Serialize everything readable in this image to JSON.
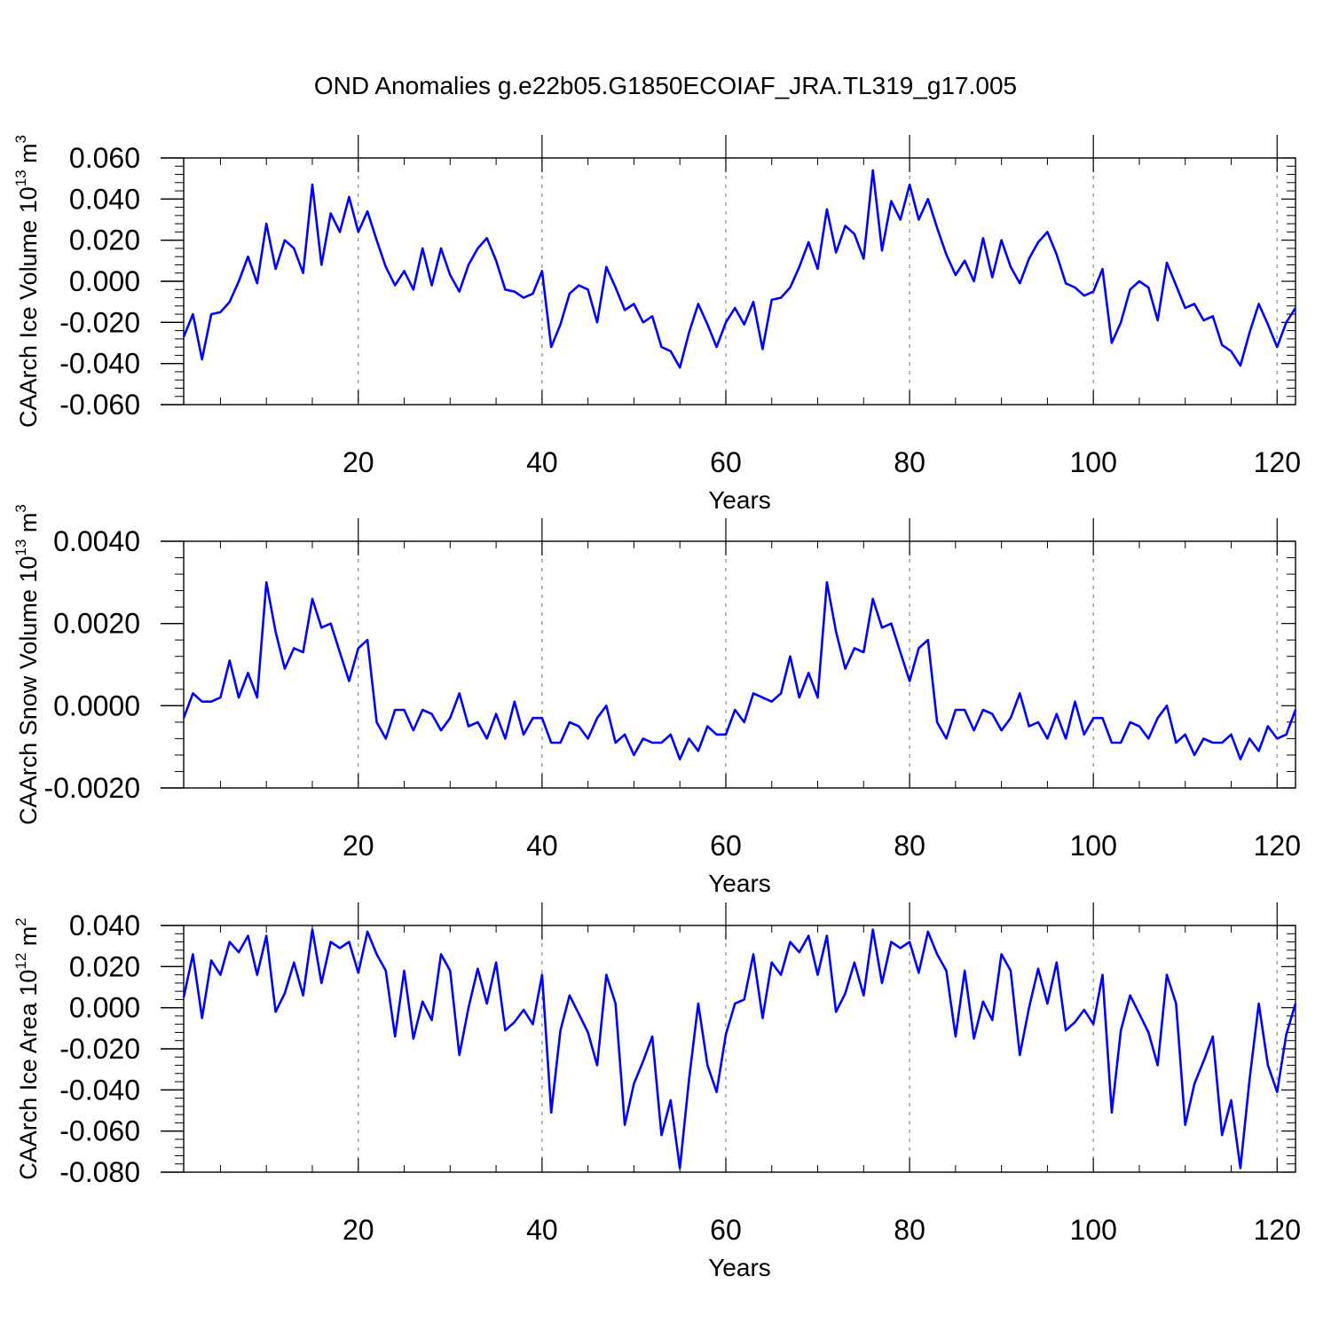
{
  "title": "OND Anomalies g.e22b05.G1850ECOIAF_JRA.TL319_g17.005",
  "colors": {
    "line": "#0000ff",
    "frame": "#000000",
    "grid": "#888888"
  },
  "chart_data": [
    {
      "type": "line",
      "name": "ice-volume",
      "ylabel_main": "CAArch Ice Volume 10",
      "ylabel_exp": "13",
      "ylabel_unit": " m",
      "ylabel_unit_exp": "3",
      "xlabel": "Years",
      "xlim": [
        1,
        122
      ],
      "ylim": [
        -0.06,
        0.06
      ],
      "xticks": [
        20,
        40,
        60,
        80,
        100,
        120
      ],
      "xtick_labels": [
        "20",
        "40",
        "60",
        "80",
        "100",
        "120"
      ],
      "yticks": [
        -0.06,
        -0.04,
        -0.02,
        0.0,
        0.02,
        0.04,
        0.06
      ],
      "ytick_labels": [
        "-0.060",
        "-0.040",
        "-0.020",
        "0.000",
        "0.020",
        "0.040",
        "0.060"
      ],
      "grid_x": [
        20,
        40,
        60,
        80,
        100,
        120
      ],
      "series": [
        {
          "name": "CAArch Ice Volume",
          "values": [
            -0.027,
            -0.016,
            -0.038,
            -0.016,
            -0.015,
            -0.01,
            0.0,
            0.012,
            -0.001,
            0.028,
            0.006,
            0.02,
            0.016,
            0.004,
            0.047,
            0.008,
            0.033,
            0.024,
            0.041,
            0.024,
            0.034,
            0.02,
            0.007,
            -0.002,
            0.005,
            -0.004,
            0.016,
            -0.002,
            0.016,
            0.003,
            -0.005,
            0.008,
            0.016,
            0.021,
            0.01,
            -0.004,
            -0.005,
            -0.008,
            -0.006,
            0.005,
            -0.032,
            -0.021,
            -0.006,
            -0.002,
            -0.004,
            -0.02,
            0.007,
            -0.003,
            -0.014,
            -0.011,
            -0.02,
            -0.017,
            -0.032,
            -0.034,
            -0.042,
            -0.025,
            -0.011,
            -0.021,
            -0.032,
            -0.02,
            -0.013,
            -0.021,
            -0.01,
            -0.033,
            -0.009,
            -0.008,
            -0.003,
            0.007,
            0.019,
            0.006,
            0.035,
            0.014,
            0.027,
            0.023,
            0.011,
            0.054,
            0.015,
            0.039,
            0.03,
            0.047,
            0.03,
            0.04,
            0.026,
            0.013,
            0.003,
            0.01,
            0.0,
            0.021,
            0.002,
            0.02,
            0.007,
            -0.001,
            0.011,
            0.019,
            0.024,
            0.013,
            -0.001,
            -0.003,
            -0.007,
            -0.005,
            0.006,
            -0.03,
            -0.02,
            -0.004,
            0.0,
            -0.003,
            -0.019,
            0.009,
            -0.002,
            -0.013,
            -0.011,
            -0.019,
            -0.017,
            -0.031,
            -0.034,
            -0.041,
            -0.025,
            -0.011,
            -0.021,
            -0.032,
            -0.02,
            -0.013
          ]
        }
      ]
    },
    {
      "type": "line",
      "name": "snow-volume",
      "ylabel_main": "CAArch Snow Volume 10",
      "ylabel_exp": "13",
      "ylabel_unit": " m",
      "ylabel_unit_exp": "3",
      "xlabel": "Years",
      "xlim": [
        1,
        122
      ],
      "ylim": [
        -0.002,
        0.004
      ],
      "xticks": [
        20,
        40,
        60,
        80,
        100,
        120
      ],
      "xtick_labels": [
        "20",
        "40",
        "60",
        "80",
        "100",
        "120"
      ],
      "yticks": [
        -0.002,
        0.0,
        0.002,
        0.004
      ],
      "ytick_labels": [
        "-0.0020",
        "0.0000",
        "0.0020",
        "0.0040"
      ],
      "grid_x": [
        20,
        40,
        60,
        80,
        100,
        120
      ],
      "series": [
        {
          "name": "CAArch Snow Volume",
          "values": [
            -0.0003,
            0.0003,
            0.0001,
            0.0001,
            0.0002,
            0.0011,
            0.0002,
            0.0008,
            0.0002,
            0.003,
            0.0018,
            0.0009,
            0.0014,
            0.0013,
            0.0026,
            0.0019,
            0.002,
            0.0013,
            0.0006,
            0.0014,
            0.0016,
            -0.0004,
            -0.0008,
            -0.0001,
            -0.0001,
            -0.0006,
            -0.0001,
            -0.0002,
            -0.0006,
            -0.0003,
            0.0003,
            -0.0005,
            -0.0004,
            -0.0008,
            -0.0002,
            -0.0008,
            0.0001,
            -0.0007,
            -0.0003,
            -0.0003,
            -0.0009,
            -0.0009,
            -0.0004,
            -0.0005,
            -0.0008,
            -0.0003,
            0.0,
            -0.0009,
            -0.0007,
            -0.0012,
            -0.0008,
            -0.0009,
            -0.0009,
            -0.0007,
            -0.0013,
            -0.0008,
            -0.0011,
            -0.0005,
            -0.0007,
            -0.0007,
            -0.0001,
            -0.0004,
            0.0003,
            0.0002,
            0.0001,
            0.0003,
            0.0012,
            0.0002,
            0.0008,
            0.0002,
            0.003,
            0.0018,
            0.0009,
            0.0014,
            0.0013,
            0.0026,
            0.0019,
            0.002,
            0.0013,
            0.0006,
            0.0014,
            0.0016,
            -0.0004,
            -0.0008,
            -0.0001,
            -0.0001,
            -0.0006,
            -0.0001,
            -0.0002,
            -0.0006,
            -0.0003,
            0.0003,
            -0.0005,
            -0.0004,
            -0.0008,
            -0.0002,
            -0.0008,
            0.0001,
            -0.0007,
            -0.0003,
            -0.0003,
            -0.0009,
            -0.0009,
            -0.0004,
            -0.0005,
            -0.0008,
            -0.0003,
            0.0,
            -0.0009,
            -0.0007,
            -0.0012,
            -0.0008,
            -0.0009,
            -0.0009,
            -0.0007,
            -0.0013,
            -0.0008,
            -0.0011,
            -0.0005,
            -0.0008,
            -0.0007,
            -0.0001
          ]
        }
      ]
    },
    {
      "type": "line",
      "name": "ice-area",
      "ylabel_main": "CAArch Ice Area 10",
      "ylabel_exp": "12",
      "ylabel_unit": " m",
      "ylabel_unit_exp": "2",
      "xlabel": "Years",
      "xlim": [
        1,
        122
      ],
      "ylim": [
        -0.08,
        0.04
      ],
      "xticks": [
        20,
        40,
        60,
        80,
        100,
        120
      ],
      "xtick_labels": [
        "20",
        "40",
        "60",
        "80",
        "100",
        "120"
      ],
      "yticks": [
        -0.08,
        -0.06,
        -0.04,
        -0.02,
        0.0,
        0.02,
        0.04
      ],
      "ytick_labels": [
        "-0.080",
        "-0.060",
        "-0.040",
        "-0.020",
        "0.000",
        "0.020",
        "0.040"
      ],
      "grid_x": [
        20,
        40,
        60,
        80,
        100,
        120
      ],
      "series": [
        {
          "name": "CAArch Ice Area",
          "values": [
            0.005,
            0.026,
            -0.005,
            0.023,
            0.016,
            0.032,
            0.027,
            0.035,
            0.016,
            0.035,
            -0.002,
            0.007,
            0.022,
            0.006,
            0.038,
            0.012,
            0.032,
            0.029,
            0.032,
            0.017,
            0.037,
            0.026,
            0.018,
            -0.014,
            0.018,
            -0.015,
            0.003,
            -0.006,
            0.026,
            0.018,
            -0.023,
            0.0,
            0.019,
            0.002,
            0.022,
            -0.011,
            -0.007,
            -0.001,
            -0.008,
            0.016,
            -0.051,
            -0.011,
            0.006,
            -0.003,
            -0.012,
            -0.028,
            0.016,
            0.002,
            -0.057,
            -0.037,
            -0.026,
            -0.014,
            -0.062,
            -0.045,
            -0.078,
            -0.035,
            0.002,
            -0.028,
            -0.041,
            -0.013,
            0.002,
            0.004,
            0.026,
            -0.005,
            0.022,
            0.016,
            0.032,
            0.027,
            0.035,
            0.016,
            0.035,
            -0.002,
            0.007,
            0.022,
            0.006,
            0.038,
            0.012,
            0.032,
            0.029,
            0.032,
            0.017,
            0.037,
            0.026,
            0.018,
            -0.014,
            0.018,
            -0.015,
            0.003,
            -0.006,
            0.026,
            0.018,
            -0.023,
            0.0,
            0.019,
            0.002,
            0.022,
            -0.011,
            -0.007,
            -0.001,
            -0.008,
            0.016,
            -0.051,
            -0.011,
            0.006,
            -0.003,
            -0.012,
            -0.028,
            0.016,
            0.002,
            -0.057,
            -0.037,
            -0.026,
            -0.014,
            -0.062,
            -0.045,
            -0.078,
            -0.035,
            0.002,
            -0.028,
            -0.041,
            -0.013,
            0.002
          ]
        }
      ]
    }
  ]
}
